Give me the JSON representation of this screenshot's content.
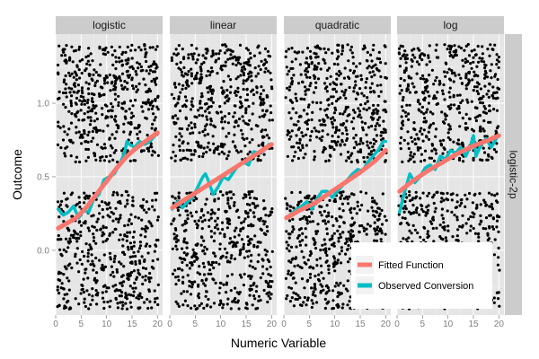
{
  "chart_data": {
    "type": "scatter",
    "xlabel": "Numeric Variable",
    "ylabel": "Outcome",
    "xlim": [
      0,
      21
    ],
    "ylim": [
      -0.44,
      1.47
    ],
    "x_ticks": [
      0,
      5,
      10,
      15,
      20
    ],
    "x_tick_labels": [
      "0",
      "5",
      "10",
      "15",
      "20"
    ],
    "y_ticks": [
      0.0,
      0.5,
      1.0
    ],
    "y_tick_labels": [
      "0.0",
      "0.5",
      "1.0"
    ],
    "row_strip": "logistic-2p",
    "grid": true,
    "legend_position": "bottom-right",
    "colors": {
      "fitted": "#f8766d",
      "observed": "#00bfc4",
      "points": "#000000",
      "panel_background": "#e5e5e5",
      "strip_background": "#cccccc"
    },
    "series": [
      {
        "name": "Fitted Function",
        "color": "#f8766d"
      },
      {
        "name": "Observed Conversion",
        "color": "#00bfc4"
      }
    ],
    "facets": [
      {
        "label": "logistic",
        "fitted": [
          [
            0.5,
            0.15
          ],
          [
            2,
            0.18
          ],
          [
            4,
            0.22
          ],
          [
            6,
            0.29
          ],
          [
            8,
            0.38
          ],
          [
            10,
            0.47
          ],
          [
            12,
            0.56
          ],
          [
            14,
            0.64
          ],
          [
            16,
            0.7
          ],
          [
            18,
            0.75
          ],
          [
            20,
            0.8
          ]
        ],
        "observed": [
          [
            0.5,
            0.28
          ],
          [
            1.5,
            0.24
          ],
          [
            2.5,
            0.26
          ],
          [
            3.5,
            0.3
          ],
          [
            4.5,
            0.22
          ],
          [
            5.5,
            0.27
          ],
          [
            6.5,
            0.26
          ],
          [
            7.5,
            0.35
          ],
          [
            8.5,
            0.38
          ],
          [
            9.5,
            0.48
          ],
          [
            10.5,
            0.5
          ],
          [
            11.5,
            0.52
          ],
          [
            12.5,
            0.58
          ],
          [
            13.5,
            0.66
          ],
          [
            14,
            0.74
          ],
          [
            14.5,
            0.72
          ],
          [
            15.5,
            0.7
          ],
          [
            16.5,
            0.74
          ],
          [
            17.5,
            0.72
          ],
          [
            18.5,
            0.74
          ],
          [
            19.5,
            0.78
          ]
        ]
      },
      {
        "label": "linear",
        "fitted": [
          [
            0.5,
            0.29
          ],
          [
            20,
            0.72
          ]
        ],
        "observed": [
          [
            0.5,
            0.28
          ],
          [
            1.5,
            0.33
          ],
          [
            2.5,
            0.29
          ],
          [
            3.5,
            0.33
          ],
          [
            4.5,
            0.36
          ],
          [
            5.5,
            0.43
          ],
          [
            6.5,
            0.5
          ],
          [
            7,
            0.52
          ],
          [
            7.5,
            0.48
          ],
          [
            8.5,
            0.38
          ],
          [
            9.5,
            0.43
          ],
          [
            10.5,
            0.5
          ],
          [
            11.5,
            0.48
          ],
          [
            12.5,
            0.53
          ],
          [
            13.5,
            0.58
          ],
          [
            14.5,
            0.6
          ],
          [
            15.5,
            0.58
          ],
          [
            16.5,
            0.67
          ],
          [
            17.5,
            0.66
          ],
          [
            18.5,
            0.68
          ],
          [
            19.5,
            0.72
          ]
        ]
      },
      {
        "label": "quadratic",
        "fitted": [
          [
            0.5,
            0.22
          ],
          [
            3,
            0.27
          ],
          [
            6,
            0.32
          ],
          [
            9,
            0.39
          ],
          [
            12,
            0.46
          ],
          [
            15,
            0.53
          ],
          [
            18,
            0.61
          ],
          [
            20,
            0.68
          ]
        ],
        "observed": [
          [
            0.5,
            0.22
          ],
          [
            1.5,
            0.25
          ],
          [
            2.5,
            0.28
          ],
          [
            3.5,
            0.3
          ],
          [
            4.5,
            0.33
          ],
          [
            5.5,
            0.28
          ],
          [
            6.5,
            0.35
          ],
          [
            7.5,
            0.4
          ],
          [
            8.5,
            0.4
          ],
          [
            9.5,
            0.36
          ],
          [
            10.5,
            0.4
          ],
          [
            11.5,
            0.44
          ],
          [
            12.5,
            0.48
          ],
          [
            13.5,
            0.52
          ],
          [
            14.5,
            0.55
          ],
          [
            15.5,
            0.54
          ],
          [
            16.5,
            0.6
          ],
          [
            17.5,
            0.64
          ],
          [
            18.5,
            0.68
          ],
          [
            19.5,
            0.74
          ],
          [
            20,
            0.74
          ]
        ]
      },
      {
        "label": "log",
        "fitted": [
          [
            0.5,
            0.4
          ],
          [
            3,
            0.47
          ],
          [
            6,
            0.54
          ],
          [
            9,
            0.6
          ],
          [
            12,
            0.66
          ],
          [
            15,
            0.71
          ],
          [
            18,
            0.75
          ],
          [
            20,
            0.78
          ]
        ],
        "observed": [
          [
            0.5,
            0.26
          ],
          [
            1.5,
            0.4
          ],
          [
            2.5,
            0.52
          ],
          [
            3.5,
            0.46
          ],
          [
            4.5,
            0.5
          ],
          [
            5.5,
            0.56
          ],
          [
            6.5,
            0.58
          ],
          [
            7.5,
            0.55
          ],
          [
            8.5,
            0.64
          ],
          [
            9.5,
            0.62
          ],
          [
            10.5,
            0.68
          ],
          [
            11.5,
            0.66
          ],
          [
            12.5,
            0.7
          ],
          [
            13.5,
            0.64
          ],
          [
            14.5,
            0.72
          ],
          [
            15,
            0.78
          ],
          [
            15.5,
            0.64
          ],
          [
            16.5,
            0.72
          ],
          [
            17.5,
            0.76
          ],
          [
            18.5,
            0.7
          ],
          [
            19.5,
            0.76
          ],
          [
            20,
            0.78
          ]
        ]
      }
    ]
  }
}
